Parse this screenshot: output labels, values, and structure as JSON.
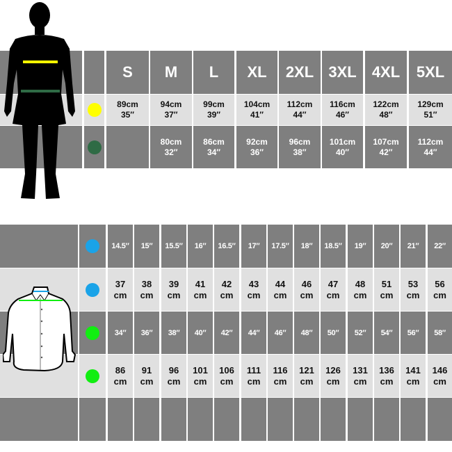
{
  "top_table": {
    "sizes": [
      "S",
      "M",
      "L",
      "XL",
      "2XL",
      "3XL",
      "4XL",
      "5XL"
    ],
    "rows": [
      {
        "indicator_color": "#ffff00",
        "values": [
          [
            "89cm",
            "35″"
          ],
          [
            "94cm",
            "37″"
          ],
          [
            "99cm",
            "39″"
          ],
          [
            "104cm",
            "41″"
          ],
          [
            "112cm",
            "44″"
          ],
          [
            "116cm",
            "46″"
          ],
          [
            "122cm",
            "48″"
          ],
          [
            "129cm",
            "51″"
          ]
        ]
      },
      {
        "indicator_color": "#2f6b45",
        "values": [
          [
            "",
            ""
          ],
          [
            "80cm",
            "32″"
          ],
          [
            "86cm",
            "34″"
          ],
          [
            "92cm",
            "36″"
          ],
          [
            "96cm",
            "38″"
          ],
          [
            "101cm",
            "40″"
          ],
          [
            "107cm",
            "42″"
          ],
          [
            "112cm",
            "44″"
          ]
        ]
      }
    ]
  },
  "bottom_table": {
    "collar_sizes": [
      "14.5″",
      "15″",
      "15.5″",
      "16″",
      "16.5″",
      "17″",
      "17.5″",
      "18″",
      "18.5″",
      "19″",
      "20″",
      "21″",
      "22″"
    ],
    "collar_indicator_color": "#1aa3e8",
    "collar_cm": [
      [
        "37",
        "cm"
      ],
      [
        "38",
        "cm"
      ],
      [
        "39",
        "cm"
      ],
      [
        "41",
        "cm"
      ],
      [
        "42",
        "cm"
      ],
      [
        "43",
        "cm"
      ],
      [
        "44",
        "cm"
      ],
      [
        "46",
        "cm"
      ],
      [
        "47",
        "cm"
      ],
      [
        "48",
        "cm"
      ],
      [
        "51",
        "cm"
      ],
      [
        "53",
        "cm"
      ],
      [
        "56",
        "cm"
      ]
    ],
    "chest_in": [
      "34″",
      "36″",
      "38″",
      "40″",
      "42″",
      "44″",
      "46″",
      "48″",
      "50″",
      "52″",
      "54″",
      "56″",
      "58″"
    ],
    "chest_indicator_color": "#11ee11",
    "chest_cm": [
      [
        "86",
        "cm"
      ],
      [
        "91",
        "cm"
      ],
      [
        "96",
        "cm"
      ],
      [
        "101",
        "cm"
      ],
      [
        "106",
        "cm"
      ],
      [
        "111",
        "cm"
      ],
      [
        "116",
        "cm"
      ],
      [
        "121",
        "cm"
      ],
      [
        "126",
        "cm"
      ],
      [
        "131",
        "cm"
      ],
      [
        "136",
        "cm"
      ],
      [
        "141",
        "cm"
      ],
      [
        "146",
        "cm"
      ]
    ]
  },
  "colors": {
    "dark": "#7f7f7f",
    "light": "#e0e0e0"
  },
  "icons": {
    "body": "male-silhouette-icon",
    "shirt": "shirt-outline-icon"
  }
}
